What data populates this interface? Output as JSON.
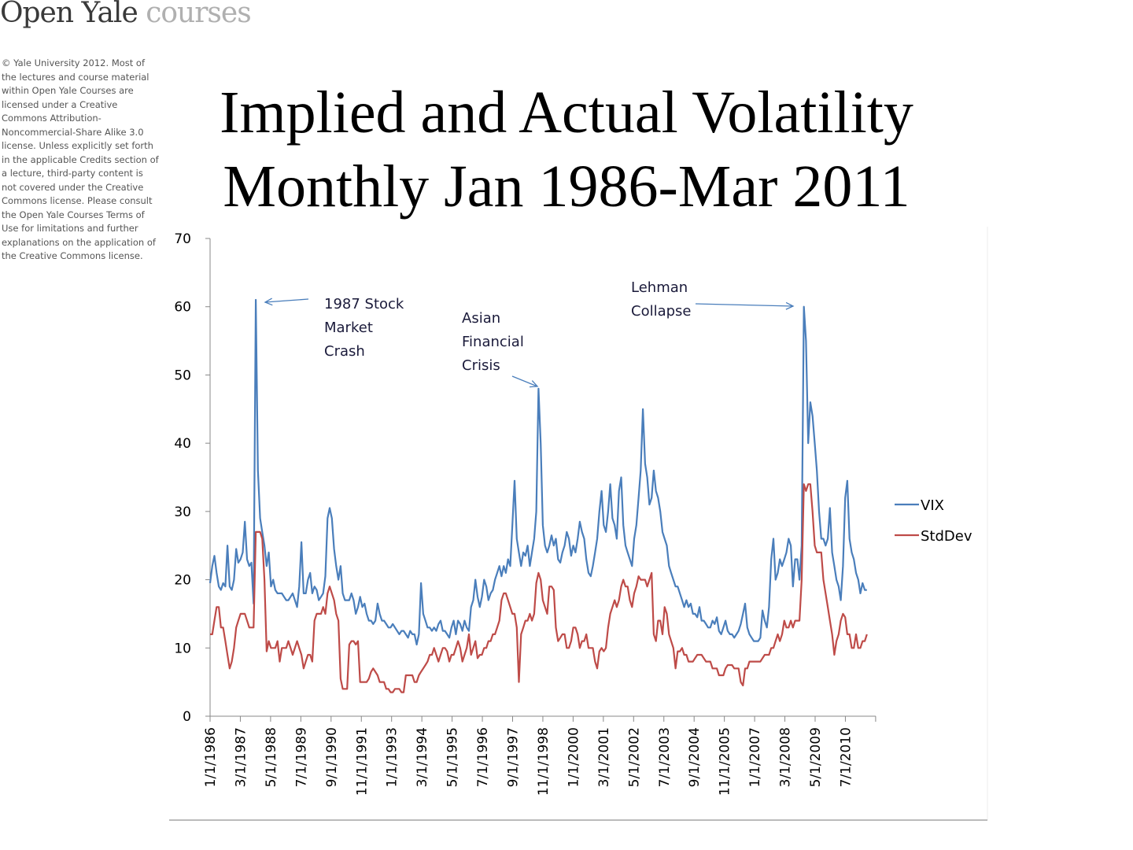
{
  "header": {
    "logo_main": "Open Yale",
    "logo_sub": "courses",
    "copyright": "© Yale University 2012. Most of the lectures and course material within Open Yale Courses are licensed under a Creative Commons Attribution-Noncommercial-Share Alike 3.0 license. Unless explicitly set forth in the applicable Credits section of a lecture, third-party content is not covered under the Creative Commons license. Please consult the Open Yale Courses Terms of Use for limitations and further explanations on the application of the Creative Commons license."
  },
  "chart_data": {
    "type": "line",
    "title": "Implied and Actual Volatility",
    "subtitle": "Monthly Jan 1986-Mar 2011",
    "xlabel": "",
    "ylabel": "",
    "ylim": [
      0,
      70
    ],
    "yticks": [
      "0",
      "10",
      "20",
      "30",
      "40",
      "50",
      "60",
      "70"
    ],
    "xticks": [
      "1/1/1986",
      "3/1/1987",
      "5/1/1988",
      "7/1/1989",
      "9/1/1990",
      "11/1/1991",
      "1/1/1993",
      "3/1/1994",
      "5/1/1995",
      "7/1/1996",
      "9/1/1997",
      "11/1/1998",
      "1/1/2000",
      "3/1/2001",
      "5/1/2002",
      "7/1/2003",
      "9/1/2004",
      "11/1/2005",
      "1/1/2007",
      "3/1/2008",
      "5/1/2009",
      "7/1/2010"
    ],
    "x_start": "1/1/1986",
    "x_end": "3/1/2011",
    "x_step": "monthly",
    "legend_position": "right",
    "grid": false,
    "series": [
      {
        "name": "VIX",
        "color": "#4a7ebb",
        "values": [
          19.5,
          22,
          23.5,
          21,
          19,
          18.5,
          19.5,
          19,
          25,
          19,
          18.5,
          20,
          24.5,
          22.5,
          23,
          24,
          28.5,
          23,
          22,
          22.5,
          16.5,
          61,
          36,
          29,
          27,
          25,
          22,
          24,
          19,
          20,
          18.5,
          18,
          18,
          18,
          17.5,
          17,
          17,
          17.5,
          18,
          17,
          16,
          19,
          25.5,
          18,
          18,
          20,
          21,
          18,
          19,
          18.5,
          17,
          17.5,
          18,
          20.5,
          29,
          30.5,
          29,
          24.5,
          22,
          20,
          22,
          18,
          17,
          17,
          17,
          18,
          17,
          15,
          16,
          17.5,
          16,
          16.5,
          15,
          14,
          14,
          13.5,
          14,
          16.5,
          15,
          14,
          14,
          13.5,
          13,
          13,
          13.5,
          13,
          12.5,
          12,
          12.5,
          12.5,
          12,
          11.5,
          12.5,
          12,
          12,
          10.5,
          12,
          19.5,
          15,
          14,
          13,
          13,
          12.5,
          13,
          12.5,
          13.5,
          14,
          12.5,
          12.5,
          12,
          11.5,
          13,
          14,
          12,
          14,
          13.5,
          12.5,
          14,
          13,
          12.5,
          16,
          17,
          20,
          17.5,
          16,
          17.5,
          20,
          19,
          17,
          18,
          18.5,
          20,
          21,
          22,
          20.5,
          22,
          21,
          23,
          22,
          28,
          34.5,
          26,
          24,
          22,
          24,
          23.5,
          25,
          22,
          24,
          26,
          30,
          48,
          40,
          28,
          25,
          24,
          25,
          26.5,
          25,
          26,
          23,
          22.5,
          24,
          25,
          27,
          26,
          23.5,
          25,
          24,
          26,
          28.5,
          27,
          26,
          23,
          21,
          20.5,
          22,
          24,
          26,
          30,
          33,
          28,
          27,
          30,
          34,
          29,
          28,
          26,
          33,
          35,
          28,
          25,
          24,
          23,
          22,
          26,
          28,
          32,
          36,
          45,
          37,
          35,
          31,
          32,
          36,
          33,
          32,
          30,
          27,
          26,
          25,
          22,
          21,
          20,
          19,
          19,
          18,
          17,
          16,
          17,
          16,
          16.5,
          15,
          15,
          14.5,
          16,
          14,
          14,
          13.5,
          13,
          13,
          14,
          13.5,
          14.5,
          12.5,
          12,
          13,
          14,
          12.5,
          12,
          12,
          11.5,
          12,
          12.5,
          13.5,
          15,
          16.5,
          13,
          12,
          11.5,
          11,
          11,
          11,
          11.5,
          15.5,
          14,
          13,
          16,
          23,
          26,
          20,
          21,
          23,
          22,
          23,
          24,
          26,
          25,
          19,
          23,
          23,
          20,
          25,
          60,
          55,
          40,
          46,
          44,
          40,
          36,
          30,
          26,
          26,
          25,
          26,
          30.5,
          24,
          22,
          20,
          19,
          17,
          22,
          32,
          34.5,
          26,
          24,
          23,
          21,
          20,
          18,
          19.5,
          18.5,
          18.5
        ]
      },
      {
        "name": "StdDev",
        "color": "#be4b48",
        "values": [
          12,
          12,
          14,
          16,
          16,
          13,
          13,
          11,
          9,
          7,
          8,
          10,
          13,
          14,
          15,
          15,
          15,
          14,
          13,
          13,
          13,
          27,
          27,
          27,
          26,
          20,
          9.5,
          11,
          10,
          10,
          10,
          11,
          8,
          10,
          10,
          10,
          11,
          10,
          9,
          10,
          11,
          10,
          9,
          7,
          8,
          9,
          9,
          8,
          14,
          15,
          15,
          15,
          16,
          15,
          18,
          19,
          18,
          17,
          15,
          14,
          5.5,
          4,
          4,
          4,
          10.5,
          11,
          11,
          10.5,
          11,
          5,
          5,
          5,
          5,
          5.5,
          6.5,
          7,
          6.5,
          6,
          5,
          5,
          5,
          4,
          4,
          3.5,
          3.5,
          4,
          4,
          4,
          3.5,
          3.5,
          6,
          6,
          6,
          6,
          5,
          5,
          6,
          6.5,
          7,
          7.5,
          8,
          9,
          9,
          10,
          9,
          8,
          9,
          10,
          10,
          9.5,
          8,
          9,
          9,
          10,
          11,
          10,
          8,
          9,
          10,
          12,
          9,
          10,
          11,
          8.5,
          9,
          9,
          10,
          10,
          11,
          11,
          12,
          12,
          13,
          14,
          17,
          18,
          18,
          17,
          16,
          15,
          15,
          13,
          5,
          12,
          13,
          14,
          14,
          15,
          14,
          15,
          19.5,
          21,
          20,
          17,
          16,
          15,
          19,
          19,
          18.5,
          13,
          11,
          11.5,
          12,
          12,
          10,
          10,
          11,
          13,
          13,
          12,
          10,
          11,
          11,
          12,
          10,
          10,
          10,
          8,
          7,
          9.5,
          10,
          9.5,
          10,
          13,
          15,
          16,
          17,
          16,
          17,
          19,
          20,
          19,
          19,
          17,
          16,
          18,
          19,
          20.5,
          20,
          20,
          20,
          19,
          20,
          21,
          12,
          11,
          14,
          14,
          12,
          16,
          15,
          12,
          11,
          10,
          7,
          9.5,
          9.5,
          10,
          9,
          9,
          8,
          8,
          8,
          8.5,
          9,
          9,
          9,
          8.5,
          8,
          8,
          8,
          7,
          7,
          7,
          6,
          6,
          6,
          7,
          7.5,
          7.5,
          7.5,
          7,
          7,
          7,
          5,
          4.5,
          7,
          7,
          8,
          8,
          8,
          8,
          8,
          8,
          8.5,
          9,
          9,
          9,
          10,
          10,
          11,
          12,
          11,
          12,
          14,
          13,
          13,
          14,
          13,
          14,
          14,
          14,
          20,
          34,
          33,
          34,
          34,
          30,
          25,
          24,
          24,
          24,
          20,
          18,
          16,
          14,
          12,
          9,
          11,
          12,
          14,
          15,
          14.5,
          12,
          12,
          10,
          10,
          12,
          10,
          10,
          11,
          11,
          12
        ]
      }
    ],
    "annotations": [
      {
        "text": [
          "1987 Stock",
          "Market",
          "Crash"
        ],
        "points_to": "10/1/1987"
      },
      {
        "text": [
          "Asian",
          "Financial",
          "Crisis"
        ],
        "points_to": "8/1/1998"
      },
      {
        "text": [
          "Lehman",
          "Collapse"
        ],
        "points_to": "10/1/2008"
      }
    ]
  }
}
